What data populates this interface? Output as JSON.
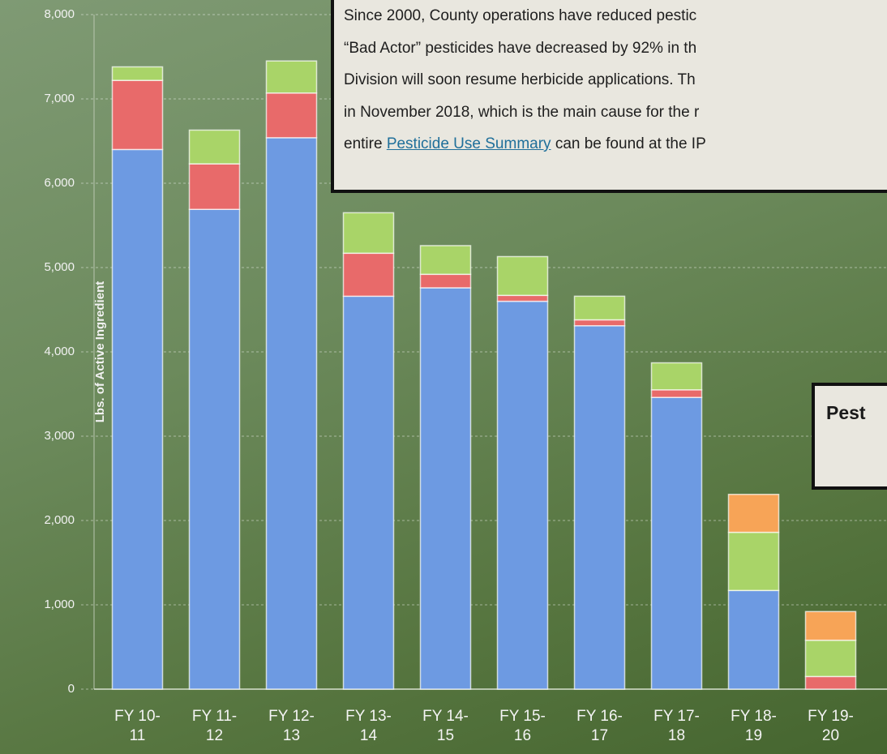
{
  "chart_data": {
    "type": "stacked_bar",
    "y_label": "Lbs. of Active Ingredient",
    "categories": [
      "FY 10-11",
      "FY 11-12",
      "FY 12-13",
      "FY 13-14",
      "FY 14-15",
      "FY 15-16",
      "FY 16-17",
      "FY 17-18",
      "FY 18-19",
      "FY 19-20"
    ],
    "series": [
      {
        "color": "#6d9ae2",
        "values": [
          6400,
          5690,
          6540,
          4660,
          4760,
          4600,
          4310,
          3460,
          1170,
          0
        ]
      },
      {
        "color": "#e86a6a",
        "values": [
          820,
          540,
          530,
          510,
          160,
          70,
          70,
          90,
          0,
          150
        ]
      },
      {
        "color": "#a9d468",
        "values": [
          160,
          400,
          380,
          480,
          340,
          460,
          280,
          320,
          690,
          430
        ]
      },
      {
        "color": "#f7a457",
        "values": [
          0,
          0,
          0,
          0,
          0,
          0,
          0,
          0,
          450,
          340
        ]
      }
    ],
    "ylim": [
      0,
      8000
    ],
    "yticks": [
      0,
      {
        "value": 1000,
        "label": "1,000"
      },
      {
        "value": 2000,
        "label": "2,000"
      },
      {
        "value": 3000,
        "label": "3,000"
      },
      {
        "value": 4000,
        "label": "4,000"
      },
      {
        "value": 5000,
        "label": "5,000"
      },
      {
        "value": 6000,
        "label": "6,000"
      },
      {
        "value": 7000,
        "label": "7,000"
      },
      {
        "value": 8000,
        "label": "8,000"
      }
    ],
    "grid": true
  },
  "note_box": {
    "lines": [
      "Since 2000, County operations have reduced pestic",
      "“Bad Actor” pesticides have decreased by 92% in th",
      "Division will soon resume herbicide applications.  Th",
      "in November 2018, which is the main cause for the r"
    ],
    "last_line": {
      "before": "entire",
      "link": "Pesticide Use Summary",
      "after": "can be found at the IP"
    }
  },
  "title_box": {
    "text": "Pest"
  }
}
